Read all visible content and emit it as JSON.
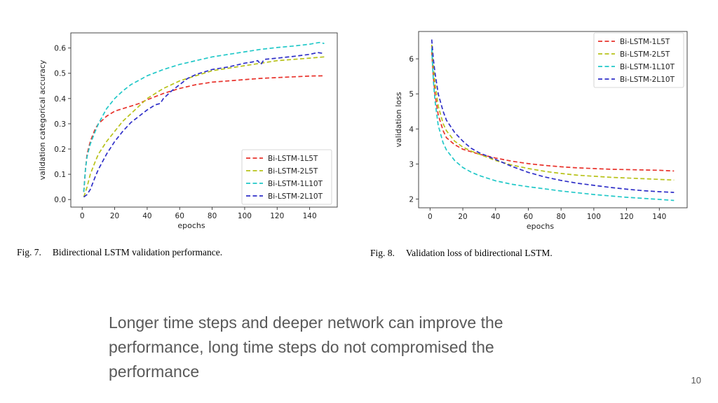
{
  "slide": {
    "body_text": "Longer time steps and deeper network can improve the performance, long time steps do not compromised the performance",
    "page_number": "10"
  },
  "figures": [
    {
      "fig_number": "Fig. 7.",
      "caption": "Bidirectional LSTM validation performance."
    },
    {
      "fig_number": "Fig. 8.",
      "caption": "Validation loss of bidirectional LSTM."
    }
  ],
  "chart_data": [
    {
      "type": "line",
      "title": "",
      "xlabel": "epochs",
      "ylabel": "validation categorical accuracy",
      "xlim": [
        -7,
        157
      ],
      "ylim": [
        -0.03,
        0.66
      ],
      "xticks": [
        0,
        20,
        40,
        60,
        80,
        100,
        120,
        140
      ],
      "yticks": [
        0.0,
        0.1,
        0.2,
        0.3,
        0.4,
        0.5,
        0.6
      ],
      "ytick_labels": [
        "0.0",
        "0.1",
        "0.2",
        "0.3",
        "0.4",
        "0.5",
        "0.6"
      ],
      "grid": false,
      "legend": "lower-right",
      "line_style": "dashed",
      "series": [
        {
          "name": "Bi-LSTM-1L5T",
          "color": "#e8332c",
          "x": [
            1,
            2,
            3,
            5,
            8,
            10,
            15,
            20,
            25,
            30,
            35,
            40,
            50,
            60,
            70,
            80,
            90,
            100,
            110,
            120,
            130,
            140,
            149
          ],
          "y": [
            0.03,
            0.12,
            0.18,
            0.23,
            0.28,
            0.3,
            0.33,
            0.35,
            0.36,
            0.37,
            0.38,
            0.395,
            0.42,
            0.44,
            0.455,
            0.465,
            0.47,
            0.475,
            0.48,
            0.483,
            0.486,
            0.489,
            0.49
          ]
        },
        {
          "name": "Bi-LSTM-2L5T",
          "color": "#b8c21a",
          "x": [
            1,
            3,
            5,
            8,
            10,
            15,
            20,
            25,
            30,
            40,
            50,
            60,
            70,
            80,
            90,
            100,
            110,
            120,
            130,
            140,
            149
          ],
          "y": [
            0.01,
            0.05,
            0.1,
            0.15,
            0.18,
            0.23,
            0.27,
            0.31,
            0.34,
            0.4,
            0.44,
            0.47,
            0.49,
            0.51,
            0.52,
            0.53,
            0.54,
            0.55,
            0.555,
            0.56,
            0.565
          ]
        },
        {
          "name": "Bi-LSTM-1L10T",
          "color": "#21c8c8",
          "x": [
            1,
            2,
            3,
            5,
            8,
            10,
            15,
            20,
            25,
            30,
            40,
            50,
            60,
            70,
            80,
            90,
            100,
            110,
            120,
            130,
            140,
            146,
            149
          ],
          "y": [
            0.03,
            0.12,
            0.17,
            0.22,
            0.27,
            0.3,
            0.36,
            0.4,
            0.43,
            0.455,
            0.49,
            0.515,
            0.535,
            0.55,
            0.565,
            0.575,
            0.585,
            0.595,
            0.602,
            0.608,
            0.615,
            0.622,
            0.618
          ]
        },
        {
          "name": "Bi-LSTM-2L10T",
          "color": "#2f2fc8",
          "x": [
            1,
            3,
            5,
            8,
            10,
            15,
            20,
            25,
            30,
            35,
            40,
            45,
            48,
            50,
            55,
            60,
            65,
            70,
            80,
            90,
            100,
            105,
            108,
            110,
            112,
            120,
            130,
            140,
            145,
            149
          ],
          "y": [
            0.01,
            0.02,
            0.04,
            0.09,
            0.12,
            0.18,
            0.23,
            0.27,
            0.305,
            0.33,
            0.355,
            0.375,
            0.38,
            0.4,
            0.43,
            0.455,
            0.48,
            0.495,
            0.515,
            0.525,
            0.54,
            0.545,
            0.55,
            0.535,
            0.555,
            0.56,
            0.567,
            0.575,
            0.582,
            0.578
          ]
        }
      ]
    },
    {
      "type": "line",
      "title": "",
      "xlabel": "epochs",
      "ylabel": "validation loss",
      "xlim": [
        -7,
        157
      ],
      "ylim": [
        1.75,
        6.78
      ],
      "xticks": [
        0,
        20,
        40,
        60,
        80,
        100,
        120,
        140
      ],
      "yticks": [
        2,
        3,
        4,
        5,
        6
      ],
      "ytick_labels": [
        "2",
        "3",
        "4",
        "5",
        "6"
      ],
      "grid": false,
      "legend": "top-right",
      "line_style": "dashed",
      "series": [
        {
          "name": "Bi-LSTM-1L5T",
          "color": "#e8332c",
          "x": [
            1,
            2,
            3,
            5,
            8,
            10,
            15,
            20,
            25,
            30,
            40,
            50,
            60,
            70,
            80,
            90,
            100,
            110,
            120,
            130,
            140,
            149
          ],
          "y": [
            6.2,
            5.5,
            5.0,
            4.4,
            3.95,
            3.75,
            3.55,
            3.42,
            3.35,
            3.28,
            3.17,
            3.08,
            3.01,
            2.96,
            2.92,
            2.89,
            2.87,
            2.85,
            2.84,
            2.83,
            2.82,
            2.8
          ]
        },
        {
          "name": "Bi-LSTM-2L5T",
          "color": "#b8c21a",
          "x": [
            1,
            2,
            3,
            5,
            8,
            10,
            15,
            20,
            25,
            30,
            40,
            50,
            60,
            70,
            80,
            90,
            100,
            110,
            120,
            130,
            140,
            149
          ],
          "y": [
            6.4,
            5.8,
            5.3,
            4.65,
            4.15,
            3.95,
            3.65,
            3.48,
            3.37,
            3.28,
            3.1,
            2.97,
            2.87,
            2.79,
            2.73,
            2.68,
            2.65,
            2.62,
            2.6,
            2.58,
            2.56,
            2.54
          ]
        },
        {
          "name": "Bi-LSTM-1L10T",
          "color": "#21c8c8",
          "x": [
            1,
            2,
            3,
            5,
            8,
            10,
            15,
            20,
            25,
            30,
            40,
            50,
            60,
            70,
            80,
            90,
            100,
            110,
            120,
            130,
            140,
            149
          ],
          "y": [
            6.3,
            5.4,
            4.8,
            4.1,
            3.6,
            3.4,
            3.1,
            2.9,
            2.77,
            2.67,
            2.52,
            2.42,
            2.35,
            2.29,
            2.23,
            2.18,
            2.13,
            2.09,
            2.05,
            2.02,
            1.99,
            1.96
          ]
        },
        {
          "name": "Bi-LSTM-2L10T",
          "color": "#2f2fc8",
          "x": [
            1,
            2,
            3,
            5,
            8,
            10,
            15,
            20,
            25,
            30,
            40,
            50,
            60,
            70,
            80,
            90,
            100,
            110,
            120,
            130,
            140,
            149
          ],
          "y": [
            6.55,
            6.0,
            5.6,
            5.0,
            4.5,
            4.25,
            3.9,
            3.65,
            3.45,
            3.32,
            3.13,
            2.93,
            2.76,
            2.63,
            2.53,
            2.45,
            2.39,
            2.33,
            2.28,
            2.24,
            2.21,
            2.19
          ]
        }
      ]
    }
  ]
}
